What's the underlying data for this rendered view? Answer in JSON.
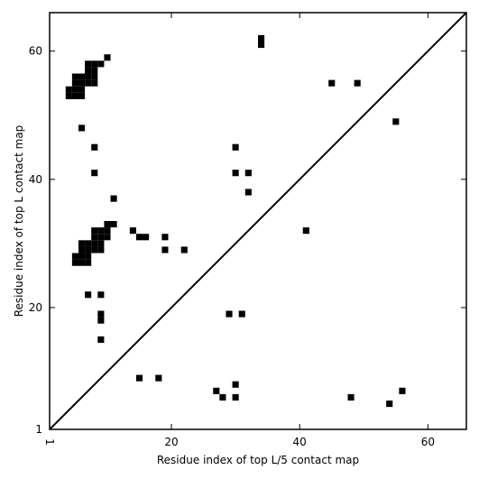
{
  "chart_data": {
    "type": "scatter",
    "title": "",
    "xlabel": "Residue index of top L/5 contact map",
    "ylabel": "Residue index of top L contact map",
    "xlim": [
      1,
      66
    ],
    "ylim": [
      1,
      66
    ],
    "xticks": [
      1,
      20,
      40,
      60
    ],
    "yticks": [
      1,
      20,
      40,
      60
    ],
    "x_tick_labels": [
      "1",
      "20",
      "40",
      "60"
    ],
    "y_tick_labels": [
      "1",
      "20",
      "40",
      "60"
    ],
    "grid": false,
    "legend": "none",
    "marker": "square",
    "color": "#000000",
    "diagonal": true,
    "series": [
      {
        "values": [
          [
            4,
            54
          ],
          [
            4,
            53
          ],
          [
            5,
            54
          ],
          [
            5,
            53
          ],
          [
            6,
            54
          ],
          [
            6,
            53
          ],
          [
            5,
            56
          ],
          [
            5,
            55
          ],
          [
            6,
            56
          ],
          [
            6,
            55
          ],
          [
            7,
            58
          ],
          [
            7,
            57
          ],
          [
            7,
            56
          ],
          [
            7,
            55
          ],
          [
            8,
            58
          ],
          [
            8,
            57
          ],
          [
            8,
            56
          ],
          [
            8,
            55
          ],
          [
            9,
            58
          ],
          [
            10,
            59
          ],
          [
            6,
            48
          ],
          [
            8,
            45
          ],
          [
            8,
            41
          ],
          [
            11,
            37
          ],
          [
            5,
            28
          ],
          [
            5,
            27
          ],
          [
            6,
            28
          ],
          [
            6,
            27
          ],
          [
            7,
            28
          ],
          [
            7,
            27
          ],
          [
            6,
            30
          ],
          [
            6,
            29
          ],
          [
            7,
            30
          ],
          [
            7,
            29
          ],
          [
            8,
            30
          ],
          [
            8,
            29
          ],
          [
            9,
            30
          ],
          [
            9,
            29
          ],
          [
            8,
            32
          ],
          [
            8,
            31
          ],
          [
            9,
            32
          ],
          [
            9,
            31
          ],
          [
            10,
            32
          ],
          [
            10,
            31
          ],
          [
            10,
            33
          ],
          [
            11,
            33
          ],
          [
            14,
            32
          ],
          [
            15,
            31
          ],
          [
            16,
            31
          ],
          [
            19,
            31
          ],
          [
            19,
            29
          ],
          [
            22,
            29
          ],
          [
            7,
            22
          ],
          [
            9,
            22
          ],
          [
            9,
            19
          ],
          [
            9,
            18
          ],
          [
            9,
            15
          ],
          [
            34,
            62
          ],
          [
            34,
            61
          ],
          [
            45,
            55
          ],
          [
            49,
            55
          ],
          [
            55,
            49
          ],
          [
            30,
            45
          ],
          [
            30,
            41
          ],
          [
            32,
            41
          ],
          [
            32,
            38
          ],
          [
            41,
            32
          ],
          [
            29,
            19
          ],
          [
            31,
            19
          ],
          [
            15,
            9
          ],
          [
            18,
            9
          ],
          [
            27,
            7
          ],
          [
            28,
            6
          ],
          [
            30,
            8
          ],
          [
            30,
            6
          ],
          [
            48,
            6
          ],
          [
            54,
            5
          ],
          [
            56,
            7
          ]
        ]
      }
    ]
  }
}
